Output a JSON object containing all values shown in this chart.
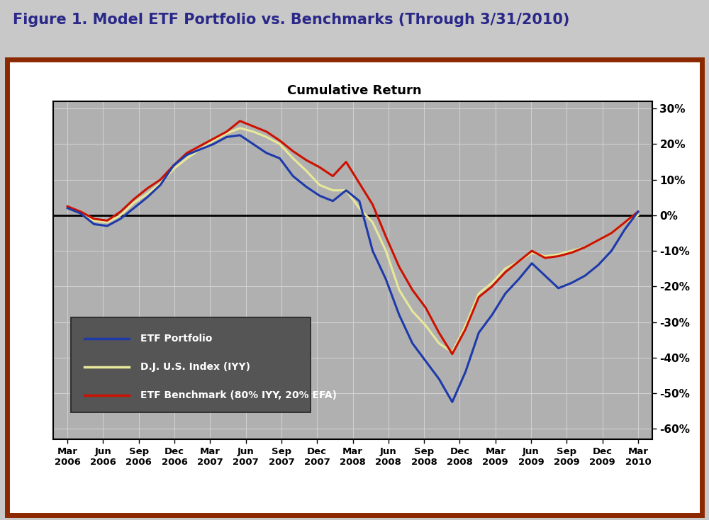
{
  "title": "Figure 1. Model ETF Portfolio vs. Benchmarks (Through 3/31/2010)",
  "chart_title": "Cumulative Return",
  "fig_bg": "#c8c8c8",
  "outer_bg": "#ffffff",
  "plot_bg": "#b0b0b0",
  "border_color": "#8b2800",
  "title_color": "#2a2888",
  "etf_color": "#1e3aaa",
  "dj_color": "#e8e89a",
  "benchmark_color": "#cc1100",
  "ylim": [
    -63,
    32
  ],
  "yticks": [
    -60,
    -50,
    -40,
    -30,
    -20,
    -10,
    0,
    10,
    20,
    30
  ],
  "grid_color": "#d0d0d0",
  "legend_bg": "#555555",
  "legend_text": "#ffffff",
  "x_labels": [
    "Mar\n2006",
    "Jun\n2006",
    "Sep\n2006",
    "Dec\n2006",
    "Mar\n2007",
    "Jun\n2007",
    "Sep\n2007",
    "Dec\n2007",
    "Mar\n2008",
    "Jun\n2008",
    "Sep\n2008",
    "Dec\n2008",
    "Mar\n2009",
    "Jun\n2009",
    "Sep\n2009",
    "Dec\n2009",
    "Mar\n2010"
  ],
  "etf_portfolio": [
    2.0,
    0.5,
    -2.5,
    -3.0,
    -1.0,
    2.0,
    5.0,
    8.5,
    14.0,
    17.0,
    18.5,
    20.0,
    22.0,
    22.5,
    20.0,
    17.5,
    16.0,
    11.0,
    8.0,
    5.5,
    4.0,
    7.0,
    4.0,
    -10.0,
    -18.0,
    -28.0,
    -36.0,
    -41.0,
    -46.0,
    -52.5,
    -44.0,
    -33.0,
    -28.0,
    -22.0,
    -18.0,
    -13.5,
    -17.0,
    -20.5,
    -19.0,
    -17.0,
    -14.0,
    -10.0,
    -4.0,
    1.0
  ],
  "dj_index": [
    2.0,
    0.5,
    -1.5,
    -2.0,
    0.0,
    3.5,
    6.0,
    9.0,
    13.0,
    16.0,
    18.5,
    21.0,
    23.0,
    24.5,
    23.5,
    22.0,
    20.0,
    16.0,
    12.5,
    8.5,
    7.0,
    7.0,
    2.0,
    -2.0,
    -10.0,
    -21.0,
    -27.0,
    -31.0,
    -36.0,
    -38.5,
    -31.0,
    -22.0,
    -19.0,
    -15.0,
    -13.0,
    -10.5,
    -11.5,
    -11.0,
    -10.0,
    -9.0,
    -7.0,
    -5.0,
    -2.0,
    0.0
  ],
  "etf_benchmark": [
    2.5,
    1.0,
    -1.0,
    -1.5,
    1.0,
    4.5,
    7.5,
    10.0,
    14.0,
    17.5,
    19.5,
    21.5,
    23.5,
    26.5,
    25.0,
    23.5,
    21.0,
    18.0,
    15.5,
    13.5,
    11.0,
    15.0,
    9.0,
    3.0,
    -6.0,
    -14.5,
    -21.0,
    -26.0,
    -33.0,
    -39.0,
    -32.0,
    -23.0,
    -20.0,
    -16.0,
    -13.0,
    -10.0,
    -12.0,
    -11.5,
    -10.5,
    -9.0,
    -7.0,
    -5.0,
    -2.0,
    1.0
  ]
}
